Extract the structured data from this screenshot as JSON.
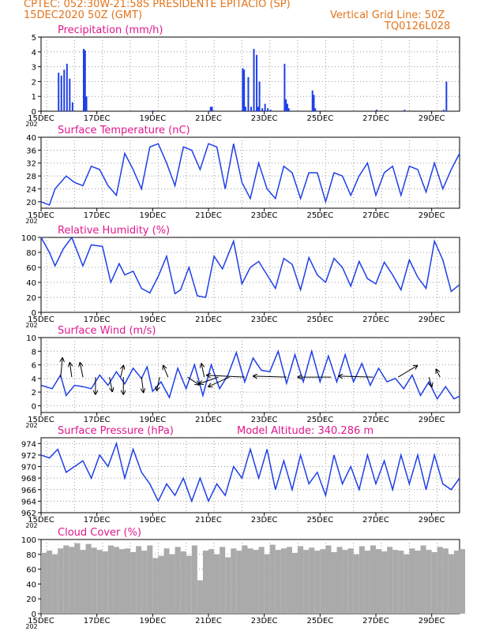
{
  "header": {
    "line1_left": "CPTEC:   052:30W-21:58S   PRESIDENTE EPITACIO (SP)",
    "line2_left": "15DEC2020 50Z (GMT)",
    "line2_right": "Vertical Grid Line: 50Z",
    "line3_right": "TQ0126L028",
    "cut_label": "202"
  },
  "colors": {
    "header": "#e2741b",
    "title": "#e0188c",
    "line": "#1f3fe6",
    "cloud": "#aaaaaa",
    "wind": "#000000"
  },
  "chart_data": [
    {
      "type": "bar",
      "title": "Precipitation (mm/h)",
      "x_tick_labels": [
        "15DEC",
        "17DEC",
        "19DEC",
        "21DEC",
        "23DEC",
        "25DEC",
        "27DEC",
        "29DEC"
      ],
      "x_range_days": [
        15,
        30
      ],
      "y_ticks": [
        "0",
        "1",
        "2",
        "3",
        "4",
        "5"
      ],
      "ylim": [
        0,
        5
      ],
      "grid": true,
      "x": [
        15.6,
        15.7,
        15.8,
        15.9,
        16.0,
        16.1,
        16.5,
        16.55,
        16.6,
        19.0,
        21.05,
        21.1,
        22.2,
        22.25,
        22.3,
        22.4,
        22.5,
        22.6,
        22.7,
        22.75,
        22.8,
        22.9,
        23.0,
        23.1,
        23.2,
        23.7,
        23.75,
        23.8,
        23.85,
        24.7,
        24.75,
        24.8,
        27.0,
        28.0,
        29.4,
        29.5
      ],
      "values": [
        2.6,
        2.4,
        2.8,
        3.2,
        2.2,
        0.6,
        4.2,
        4.1,
        1.0,
        0.05,
        0.3,
        0.3,
        2.9,
        2.8,
        0.3,
        2.3,
        0.3,
        4.2,
        3.8,
        0.3,
        2.0,
        0.2,
        0.5,
        0.2,
        0.1,
        3.2,
        0.8,
        0.5,
        0.2,
        1.4,
        1.1,
        0.2,
        0.1,
        0.1,
        0.1,
        2.0
      ]
    },
    {
      "type": "line",
      "title": "Surface Temperature (nC)",
      "x_tick_labels": [
        "15DEC",
        "17DEC",
        "19DEC",
        "21DEC",
        "23DEC",
        "25DEC",
        "27DEC",
        "29DEC"
      ],
      "y_ticks": [
        "20",
        "24",
        "28",
        "32",
        "36",
        "40"
      ],
      "ylim": [
        18,
        40
      ],
      "grid": true,
      "x": [
        15.0,
        15.3,
        15.5,
        15.9,
        16.2,
        16.5,
        16.8,
        17.1,
        17.4,
        17.7,
        18.0,
        18.3,
        18.6,
        18.9,
        19.2,
        19.5,
        19.8,
        20.1,
        20.4,
        20.7,
        21.0,
        21.3,
        21.6,
        21.9,
        22.2,
        22.5,
        22.8,
        23.1,
        23.4,
        23.7,
        24.0,
        24.3,
        24.6,
        24.9,
        25.2,
        25.5,
        25.8,
        26.1,
        26.4,
        26.7,
        27.0,
        27.3,
        27.6,
        27.9,
        28.2,
        28.5,
        28.8,
        29.1,
        29.4,
        29.7,
        30.0
      ],
      "values": [
        20,
        19,
        24,
        28,
        26,
        25,
        31,
        30,
        25,
        22,
        35,
        30,
        24,
        37,
        38,
        32,
        25,
        37,
        36,
        30,
        38,
        37,
        24,
        38,
        26,
        21,
        32,
        24,
        21,
        31,
        29,
        21,
        29,
        29,
        20,
        29,
        28,
        22,
        28,
        32,
        22,
        29,
        31,
        22,
        31,
        30,
        23,
        32,
        24,
        30,
        35
      ]
    },
    {
      "type": "line",
      "title": "Relative Humidity (%)",
      "x_tick_labels": [
        "15DEC",
        "17DEC",
        "19DEC",
        "21DEC",
        "23DEC",
        "25DEC",
        "27DEC",
        "29DEC"
      ],
      "y_ticks": [
        "0",
        "20",
        "40",
        "60",
        "80",
        "100"
      ],
      "ylim": [
        0,
        100
      ],
      "grid": true,
      "x": [
        15.0,
        15.3,
        15.5,
        15.8,
        16.1,
        16.5,
        16.8,
        17.2,
        17.5,
        17.8,
        18.0,
        18.3,
        18.6,
        18.9,
        19.2,
        19.5,
        19.8,
        20.0,
        20.3,
        20.6,
        20.9,
        21.2,
        21.5,
        21.9,
        22.2,
        22.5,
        22.8,
        23.1,
        23.4,
        23.7,
        24.0,
        24.3,
        24.6,
        24.9,
        25.2,
        25.5,
        25.8,
        26.1,
        26.4,
        26.7,
        27.0,
        27.3,
        27.6,
        27.9,
        28.2,
        28.5,
        28.8,
        29.1,
        29.4,
        29.7,
        30.0
      ],
      "values": [
        100,
        80,
        62,
        85,
        100,
        62,
        90,
        88,
        40,
        65,
        50,
        55,
        32,
        26,
        48,
        75,
        25,
        30,
        60,
        22,
        20,
        75,
        58,
        95,
        38,
        60,
        68,
        50,
        32,
        72,
        64,
        30,
        73,
        50,
        40,
        72,
        60,
        35,
        68,
        45,
        38,
        67,
        50,
        30,
        70,
        47,
        32,
        95,
        70,
        28,
        37
      ]
    },
    {
      "type": "line",
      "title": "Surface Wind (m/s)",
      "x_tick_labels": [
        "15DEC",
        "17DEC",
        "19DEC",
        "21DEC",
        "23DEC",
        "25DEC",
        "27DEC",
        "29DEC"
      ],
      "y_ticks": [
        "0",
        "2",
        "4",
        "6",
        "8",
        "10"
      ],
      "ylim": [
        -1,
        10
      ],
      "grid": true,
      "x": [
        15.0,
        15.4,
        15.7,
        15.9,
        16.2,
        16.5,
        16.8,
        17.1,
        17.4,
        17.7,
        18.0,
        18.3,
        18.6,
        18.8,
        19.0,
        19.3,
        19.6,
        19.9,
        20.2,
        20.5,
        20.8,
        21.1,
        21.4,
        21.7,
        22.0,
        22.3,
        22.6,
        22.9,
        23.2,
        23.5,
        23.8,
        24.1,
        24.4,
        24.7,
        25.0,
        25.3,
        25.6,
        25.9,
        26.2,
        26.5,
        26.8,
        27.1,
        27.4,
        27.7,
        28.0,
        28.3,
        28.6,
        28.9,
        29.2,
        29.5,
        29.8,
        30.0
      ],
      "values": [
        3,
        2.5,
        4.5,
        1.5,
        3,
        2.8,
        2.5,
        4.5,
        3,
        5,
        3.2,
        5.5,
        4,
        5.7,
        2.1,
        3.5,
        1.2,
        5.5,
        2.5,
        6,
        1.5,
        6,
        2.5,
        4.5,
        7.8,
        3.5,
        7,
        5.2,
        5,
        8,
        3.3,
        7.5,
        3.5,
        8,
        3.5,
        7.3,
        3.5,
        7.5,
        3.5,
        6.2,
        3,
        5.5,
        3.5,
        4,
        2.5,
        4.5,
        1.5,
        3.5,
        1,
        2.8,
        1,
        1.4
      ],
      "arrows": [
        {
          "x": 15.7,
          "u": 0.2,
          "v": 2.0
        },
        {
          "x": 16.1,
          "u": -0.2,
          "v": 1.5
        },
        {
          "x": 16.5,
          "u": -0.3,
          "v": 1.5
        },
        {
          "x": 16.95,
          "u": 0,
          "v": -1.8
        },
        {
          "x": 17.45,
          "u": 0.3,
          "v": -1.5
        },
        {
          "x": 17.85,
          "u": 0.3,
          "v": 1.2
        },
        {
          "x": 17.95,
          "u": 0,
          "v": -1.8
        },
        {
          "x": 18.6,
          "u": 0.2,
          "v": -1.6
        },
        {
          "x": 19.25,
          "u": -0.3,
          "v": -1.4
        },
        {
          "x": 19.55,
          "u": -0.5,
          "v": 1.2
        },
        {
          "x": 20.25,
          "u": 1.2,
          "v": -0.8
        },
        {
          "x": 20.85,
          "u": -0.3,
          "v": 1.4
        },
        {
          "x": 21.35,
          "u": -2.0,
          "v": -0.7
        },
        {
          "x": 21.75,
          "u": -2.2,
          "v": -1.0
        },
        {
          "x": 22.3,
          "u": -4.0,
          "v": 0.2
        },
        {
          "x": 23.8,
          "u": -3.5,
          "v": 0.1
        },
        {
          "x": 25.4,
          "u": -3.5,
          "v": 0.0
        },
        {
          "x": 26.9,
          "u": -3.6,
          "v": 0.1
        },
        {
          "x": 27.8,
          "u": 2.0,
          "v": 1.2
        },
        {
          "x": 28.9,
          "u": 0.3,
          "v": -1.0
        },
        {
          "x": 29.3,
          "u": -0.4,
          "v": 0.8
        }
      ]
    },
    {
      "type": "line",
      "title": "Surface Pressure (hPa)",
      "annotation": "Model Altitude: 340.286 m",
      "x_tick_labels": [
        "15DEC",
        "17DEC",
        "19DEC",
        "21DEC",
        "23DEC",
        "25DEC",
        "27DEC",
        "29DEC"
      ],
      "y_ticks": [
        "962",
        "964",
        "966",
        "968",
        "970",
        "972",
        "974"
      ],
      "ylim": [
        962,
        975
      ],
      "grid": true,
      "x": [
        15.0,
        15.3,
        15.6,
        15.9,
        16.2,
        16.5,
        16.8,
        17.1,
        17.4,
        17.7,
        18.0,
        18.3,
        18.6,
        18.9,
        19.2,
        19.5,
        19.8,
        20.1,
        20.4,
        20.7,
        21.0,
        21.3,
        21.6,
        21.9,
        22.2,
        22.5,
        22.8,
        23.1,
        23.4,
        23.7,
        24.0,
        24.3,
        24.6,
        24.9,
        25.2,
        25.5,
        25.8,
        26.1,
        26.4,
        26.7,
        27.0,
        27.3,
        27.6,
        27.9,
        28.2,
        28.5,
        28.8,
        29.1,
        29.4,
        29.7,
        30.0
      ],
      "values": [
        972,
        971.5,
        973,
        969,
        970,
        971,
        968,
        972,
        970,
        974,
        968,
        973,
        969,
        967,
        964,
        967,
        965,
        968,
        964,
        968,
        964,
        967,
        965,
        970,
        968,
        973,
        968,
        973,
        966,
        971,
        966,
        972,
        967,
        969,
        965,
        972,
        967,
        970,
        966,
        972,
        967,
        971,
        966,
        972,
        967,
        972,
        966,
        972,
        967,
        966,
        968
      ]
    },
    {
      "type": "area",
      "title": "Cloud Cover (%)",
      "x_tick_labels": [
        "15DEC",
        "17DEC",
        "19DEC",
        "21DEC",
        "23DEC",
        "25DEC",
        "27DEC",
        "29DEC"
      ],
      "y_ticks": [
        "0",
        "20",
        "40",
        "60",
        "80",
        "100"
      ],
      "ylim": [
        0,
        100
      ],
      "grid": true,
      "x": [
        15.0,
        15.2,
        15.4,
        15.6,
        15.8,
        16.0,
        16.2,
        16.4,
        16.6,
        16.8,
        17.0,
        17.2,
        17.4,
        17.6,
        17.8,
        18.0,
        18.2,
        18.4,
        18.6,
        18.8,
        19.0,
        19.2,
        19.4,
        19.6,
        19.8,
        20.0,
        20.2,
        20.4,
        20.6,
        20.8,
        21.0,
        21.2,
        21.4,
        21.6,
        21.8,
        22.0,
        22.2,
        22.4,
        22.6,
        22.8,
        23.0,
        23.2,
        23.4,
        23.6,
        23.8,
        24.0,
        24.2,
        24.4,
        24.6,
        24.8,
        25.0,
        25.2,
        25.4,
        25.6,
        25.8,
        26.0,
        26.2,
        26.4,
        26.6,
        26.8,
        27.0,
        27.2,
        27.4,
        27.6,
        27.8,
        28.0,
        28.2,
        28.4,
        28.6,
        28.8,
        29.0,
        29.2,
        29.4,
        29.6,
        29.8,
        30.0
      ],
      "values": [
        82,
        85,
        80,
        88,
        92,
        90,
        95,
        86,
        94,
        89,
        86,
        84,
        92,
        90,
        87,
        88,
        83,
        91,
        85,
        92,
        75,
        78,
        88,
        80,
        90,
        84,
        78,
        92,
        45,
        85,
        87,
        80,
        90,
        76,
        88,
        85,
        92,
        88,
        86,
        90,
        80,
        93,
        86,
        88,
        90,
        82,
        91,
        86,
        89,
        85,
        87,
        92,
        83,
        90,
        86,
        88,
        80,
        91,
        85,
        92,
        87,
        84,
        90,
        86,
        85,
        80,
        88,
        85,
        92,
        86,
        83,
        90,
        88,
        80,
        85,
        87
      ]
    }
  ]
}
